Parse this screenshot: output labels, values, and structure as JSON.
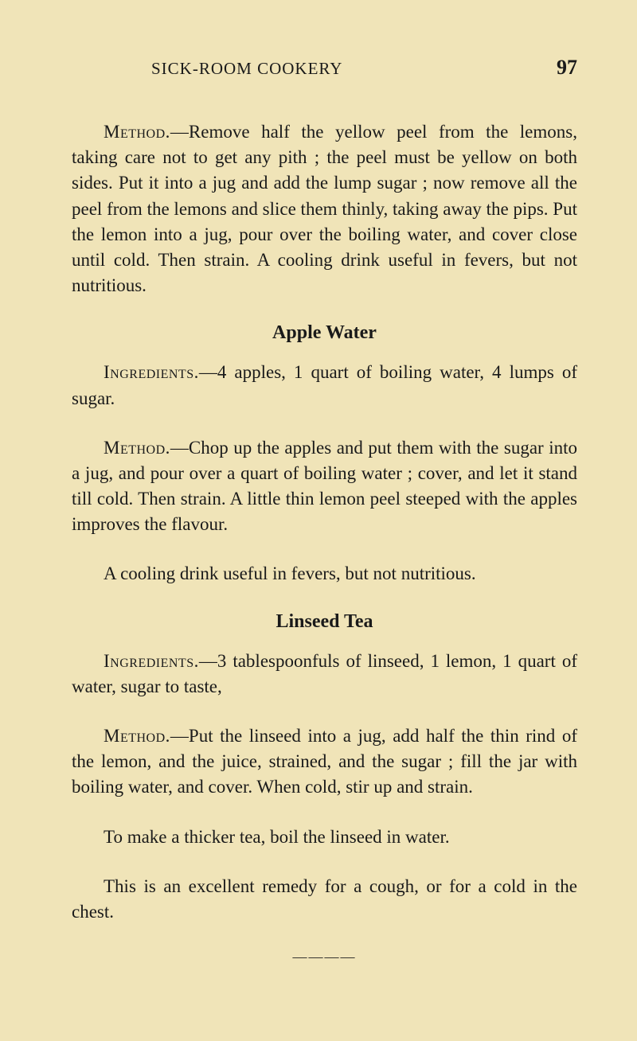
{
  "header": {
    "title": "SICK-ROOM COOKERY",
    "page_number": "97"
  },
  "intro": {
    "method_label": "Method.",
    "method_text": "—Remove half the yellow peel from the lemons, taking care not to get any pith ; the peel must be yellow on both sides. Put it into a jug and add the lump sugar ; now remove all the peel from the lemons and slice them thinly, taking away the pips. Put the lemon into a jug, pour over the boiling water, and cover close until cold. Then strain. A cooling drink useful in fevers, but not nutritious."
  },
  "recipe1": {
    "title": "Apple Water",
    "ingredients_label": "Ingredients.",
    "ingredients_text": "—4 apples, 1 quart of boiling water, 4 lumps of sugar.",
    "method_label": "Method.",
    "method_text": "—Chop up the apples and put them with the sugar into a jug, and pour over a quart of boiling water ; cover, and let it stand till cold. Then strain. A little thin lemon peel steeped with the apples improves the flavour.",
    "note": "A cooling drink useful in fevers, but not nutritious."
  },
  "recipe2": {
    "title": "Linseed Tea",
    "ingredients_label": "Ingredients.",
    "ingredients_text": "—3 tablespoonfuls of linseed, 1 lemon, 1 quart of water, sugar to taste,",
    "method_label": "Method.",
    "method_text": "—Put the linseed into a jug, add half the thin rind of the lemon, and the juice, strained, and the sugar ; fill the jar with boiling water, and cover. When cold, stir up and strain.",
    "note1": "To make a thicker tea, boil the linseed in water.",
    "note2": "This is an excellent remedy for a cough, or for a cold in the chest."
  },
  "styles": {
    "background_color": "#f0e4b8",
    "text_color": "#1a1a1a",
    "body_fontsize": 23,
    "title_fontsize": 24,
    "header_title_fontsize": 21,
    "page_number_fontsize": 26
  }
}
